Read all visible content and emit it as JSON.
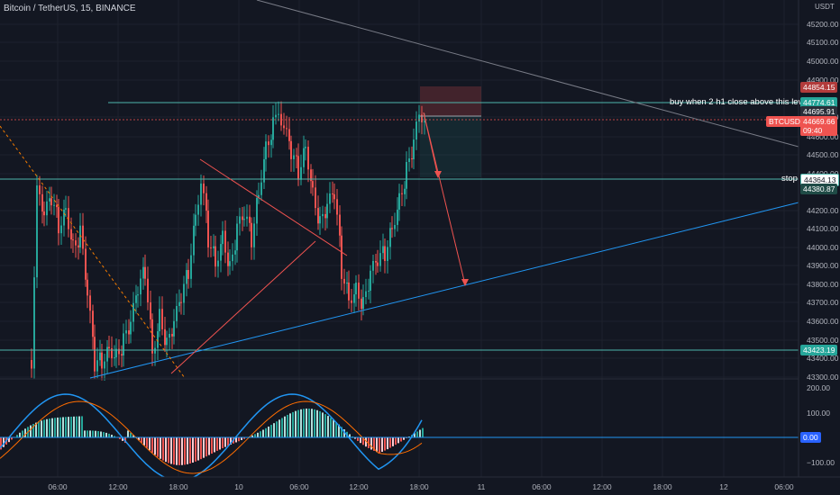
{
  "symbol_title": "Bitcoin / TetherUS, 15, BINANCE",
  "currency": "USDT",
  "price_axis": {
    "labels": [
      "45200.00",
      "45100.00",
      "45000.00",
      "44900.00",
      "44700.00",
      "44600.00",
      "44500.00",
      "44400.00",
      "44200.00",
      "44100.00",
      "44000.00",
      "43900.00",
      "43800.00",
      "43700.00",
      "43600.00",
      "43500.00",
      "43400.00",
      "43300.00"
    ]
  },
  "price_tags": {
    "top": "44854.15",
    "buy_level": "44774.61",
    "entry": "44695.91",
    "symbol": "BTCUSDT",
    "last_price": "44669.66",
    "countdown": "09:40",
    "stop": "44364.13",
    "stop2": "44380.87",
    "support": "43423.19"
  },
  "annotations": {
    "buy": "buy when 2 h1 close above this level",
    "stop": "stop"
  },
  "osc_axis": {
    "labels": [
      "200.00",
      "100.00",
      "−100.00"
    ],
    "zero": "0.00"
  },
  "time_axis": {
    "labels": [
      "06:00",
      "12:00",
      "18:00",
      "10",
      "06:00",
      "12:00",
      "18:00",
      "11",
      "06:00",
      "12:00",
      "18:00",
      "12",
      "06:00"
    ]
  },
  "colors": {
    "background": "#131722",
    "up": "#26a69a",
    "down": "#ef5350",
    "level_line": "#4db6ac",
    "trend_line": "#2196f3"
  }
}
